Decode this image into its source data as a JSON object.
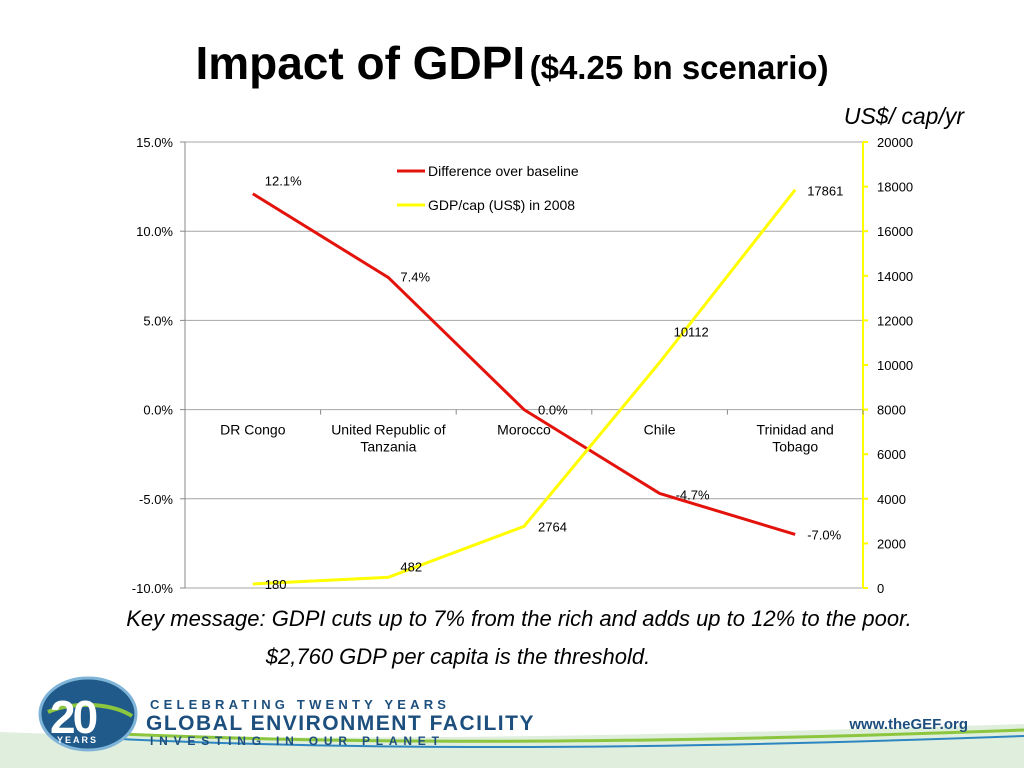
{
  "title": {
    "main": "Impact of GDPI",
    "sub": "($4.25 bn scenario)"
  },
  "units_label": "US$/ cap/yr",
  "chart_data": {
    "type": "line",
    "categories": [
      "DR Congo",
      "United Republic of Tanzania",
      "Morocco",
      "Chile",
      "Trinidad and Tobago"
    ],
    "category_lines": [
      [
        "DR Congo"
      ],
      [
        "United Republic of",
        "Tanzania"
      ],
      [
        "Morocco"
      ],
      [
        "Chile"
      ],
      [
        "Trinidad and",
        "Tobago"
      ]
    ],
    "y_left": {
      "min": -10,
      "max": 15,
      "step": 5,
      "ticks": [
        "-10.0%",
        "-5.0%",
        "0.0%",
        "5.0%",
        "10.0%",
        "15.0%"
      ]
    },
    "y_right": {
      "min": 0,
      "max": 20000,
      "step": 2000,
      "ticks": [
        "0",
        "2000",
        "4000",
        "6000",
        "8000",
        "10000",
        "12000",
        "14000",
        "16000",
        "18000",
        "20000"
      ]
    },
    "grid": "horizontal",
    "legend_position": "top-center",
    "series": [
      {
        "name": "Difference over  baseline",
        "axis": "left",
        "color": "#e3120b",
        "values": [
          12.1,
          7.4,
          0.0,
          -4.7,
          -7.0
        ],
        "labels": [
          "12.1%",
          "7.4%",
          "0.0%",
          "-4.7%",
          "-7.0%"
        ]
      },
      {
        "name": "GDP/cap (US$) in 2008",
        "axis": "right",
        "color": "#ffff00",
        "values": [
          180,
          482,
          2764,
          10112,
          17861
        ],
        "labels": [
          "180",
          "482",
          "2764",
          "10112",
          "17861"
        ]
      }
    ]
  },
  "key_message": {
    "line1": "Key message: GDPI cuts up to 7% from the rich and adds up to 12% to the poor.",
    "line2": "$2,760 GDP per capita is the threshold."
  },
  "footer": {
    "logo_number": "20",
    "logo_years": "YEARS",
    "celebrating": "CELEBRATING TWENTY YEARS",
    "org_name": "GLOBAL ENVIRONMENT FACILITY",
    "tagline": "INVESTING IN OUR PLANET",
    "url": "www.theGEF.org"
  }
}
